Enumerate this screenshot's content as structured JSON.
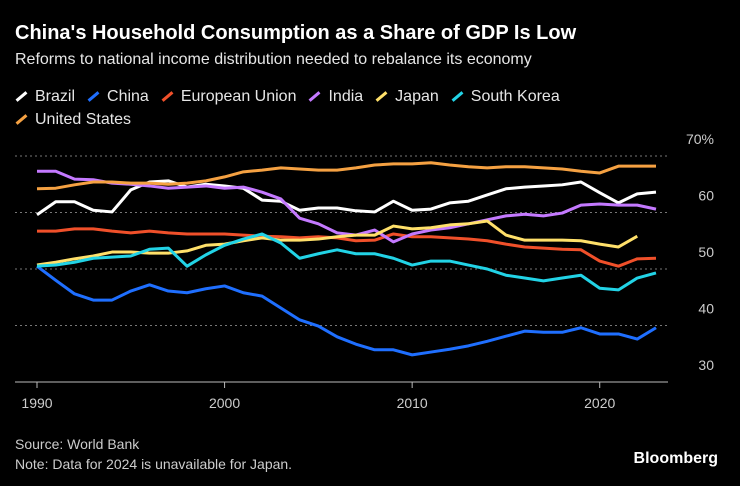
{
  "chart_data": {
    "type": "line",
    "title": "China's Household Consumption as a Share of GDP Is Low",
    "subtitle": "Reforms to national income distribution needed to rebalance its economy",
    "source": "Source: World Bank",
    "note": "Note: Data for 2024 is unavailable for Japan.",
    "brand": "Bloomberg",
    "x": [
      1990,
      1991,
      1992,
      1993,
      1994,
      1995,
      1996,
      1997,
      1998,
      1999,
      2000,
      2001,
      2002,
      2003,
      2004,
      2005,
      2006,
      2007,
      2008,
      2009,
      2010,
      2011,
      2012,
      2013,
      2014,
      2015,
      2016,
      2017,
      2018,
      2019,
      2020,
      2021,
      2022,
      2023
    ],
    "xlim": [
      1990,
      2023
    ],
    "xticks": [
      1990,
      2000,
      2010,
      2020
    ],
    "ylim": [
      30,
      70
    ],
    "yticks": [
      30,
      40,
      50,
      60,
      {
        "value": 70,
        "label": "70%"
      }
    ],
    "grid": true,
    "series": [
      {
        "name": "Brazil",
        "color": "#ffffff",
        "values": [
          59.6,
          61.9,
          61.9,
          60.4,
          60.1,
          64,
          65.4,
          65.6,
          64.5,
          65,
          64.7,
          64.3,
          62.2,
          62,
          60.4,
          60.8,
          60.8,
          60.3,
          60.1,
          62,
          60.4,
          60.6,
          61.7,
          62,
          63.1,
          64.2,
          64.5,
          64.7,
          64.9,
          65.4,
          63.5,
          61.7,
          63.3,
          63.6
        ]
      },
      {
        "name": "China",
        "color": "#1f6fff",
        "values": [
          50.5,
          48,
          45.6,
          44.5,
          44.5,
          46.1,
          47.2,
          46.1,
          45.8,
          46.5,
          47,
          45.8,
          45.2,
          43.1,
          41,
          39.9,
          38,
          36.7,
          35.7,
          35.7,
          34.8,
          35.3,
          35.8,
          36.4,
          37.2,
          38.1,
          39,
          38.8,
          38.8,
          39.6,
          38.5,
          38.5,
          37.6,
          39.6
        ]
      },
      {
        "name": "European Union",
        "color": "#f0502a",
        "values": [
          56.7,
          56.7,
          57.1,
          57.1,
          56.7,
          56.4,
          56.7,
          56.4,
          56.2,
          56.2,
          56.2,
          56,
          55.8,
          55.7,
          55.5,
          55.7,
          55.5,
          55,
          55.1,
          56.2,
          55.7,
          55.7,
          55.5,
          55.3,
          55,
          54.4,
          53.9,
          53.7,
          53.5,
          53.4,
          51.4,
          50.5,
          51.8,
          51.9
        ]
      },
      {
        "name": "India",
        "color": "#c479ff",
        "values": [
          67.3,
          67.3,
          65.9,
          65.8,
          65.2,
          65,
          64.7,
          64.3,
          64.5,
          64.7,
          64.3,
          64.5,
          63.6,
          62.4,
          59,
          58,
          56.4,
          56,
          56.9,
          54.8,
          56.2,
          56.9,
          57.3,
          58,
          58.7,
          59.4,
          59.7,
          59.4,
          59.9,
          61.3,
          61.5,
          61.3,
          61.3,
          60.6
        ]
      },
      {
        "name": "Japan",
        "color": "#ffe06a",
        "values": [
          50.7,
          51.2,
          51.8,
          52.3,
          53,
          53,
          52.8,
          52.8,
          53.2,
          54.2,
          54.4,
          55,
          55.5,
          55.1,
          55.1,
          55.3,
          55.7,
          56,
          56,
          57.6,
          57.1,
          57.3,
          57.8,
          58,
          58.5,
          56,
          55.1,
          55.1,
          55.1,
          55,
          54.4,
          53.9,
          55.8,
          null
        ]
      },
      {
        "name": "South Korea",
        "color": "#22d3e6",
        "values": [
          50.5,
          50.7,
          51.2,
          51.9,
          52.1,
          52.3,
          53.5,
          53.7,
          50.5,
          52.5,
          54.2,
          55.3,
          56.2,
          54.6,
          51.9,
          52.7,
          53.4,
          52.7,
          52.7,
          51.9,
          50.7,
          51.4,
          51.4,
          50.7,
          50,
          48.9,
          48.4,
          47.9,
          48.4,
          48.9,
          46.6,
          46.3,
          48.4,
          49.3
        ]
      },
      {
        "name": "United States",
        "color": "#f5a142",
        "values": [
          64.2,
          64.3,
          64.9,
          65.4,
          65.4,
          65.2,
          65.2,
          65,
          65.2,
          65.6,
          66.3,
          67.2,
          67.5,
          67.9,
          67.7,
          67.5,
          67.5,
          67.9,
          68.4,
          68.6,
          68.6,
          68.8,
          68.4,
          68.1,
          67.9,
          68.1,
          68.1,
          67.9,
          67.7,
          67.3,
          67,
          68.2,
          68.2,
          68.2
        ]
      }
    ]
  }
}
